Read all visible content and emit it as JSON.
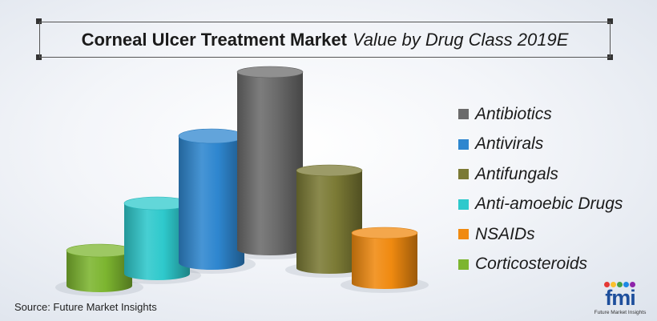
{
  "title": {
    "main": "Corneal Ulcer Treatment Market",
    "sub": "Value by Drug Class 2019E"
  },
  "chart_data": {
    "type": "bar",
    "title": "Corneal Ulcer Treatment Market Value by Drug Class 2019E",
    "categories": [
      "Corticosteroids",
      "Anti-amoebic Drugs",
      "Antivirals",
      "Antibiotics",
      "Antifungals",
      "NSAIDs"
    ],
    "values": [
      44,
      88,
      158,
      222,
      122,
      63
    ],
    "value_unit": "relative (no axis printed)",
    "colors": [
      "#7cb52f",
      "#2ec9cc",
      "#2e86cf",
      "#6b6b6b",
      "#7b7a35",
      "#f08a10"
    ],
    "legend": [
      "Antibiotics",
      "Antivirals",
      "Antifungals",
      "Anti-amoebic Drugs",
      "NSAIDs",
      "Corticosteroids"
    ],
    "legend_colors": [
      "#6b6b6b",
      "#2e86cf",
      "#7b7a35",
      "#2ec9cc",
      "#f08a10",
      "#7cb52f"
    ],
    "legend_position": "right",
    "grid": false,
    "xlabel": "",
    "ylabel": ""
  },
  "source": "Source: Future Market Insights",
  "logo": {
    "text": "fmi",
    "subtext": "Future Market Insights",
    "dot_colors": [
      "#e53935",
      "#fbc02d",
      "#43a047",
      "#1e88e5",
      "#8e24aa"
    ]
  }
}
